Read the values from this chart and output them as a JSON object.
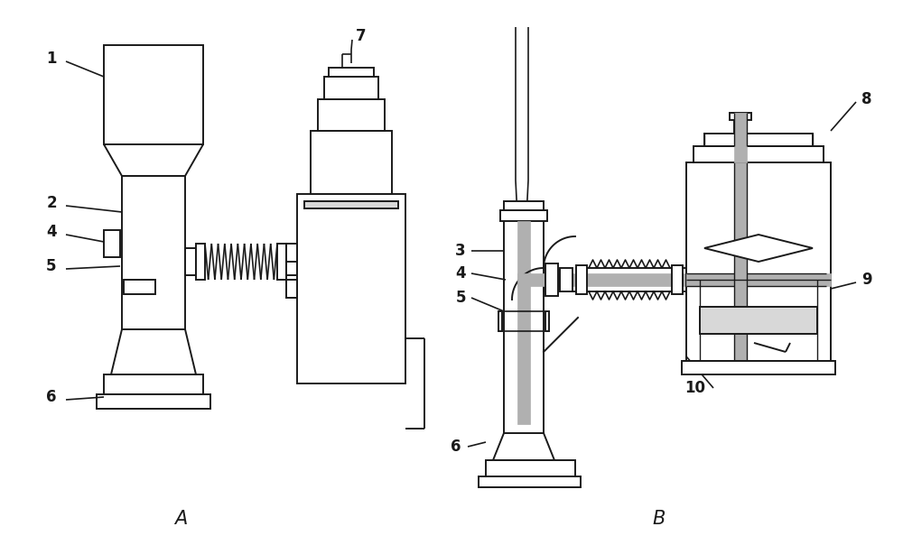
{
  "bg_color": "#ffffff",
  "line_color": "#1a1a1a",
  "gray_fill": "#b0b0b0",
  "light_gray_fill": "#d8d8d8",
  "figsize": [
    10.0,
    6.04
  ],
  "dpi": 100
}
